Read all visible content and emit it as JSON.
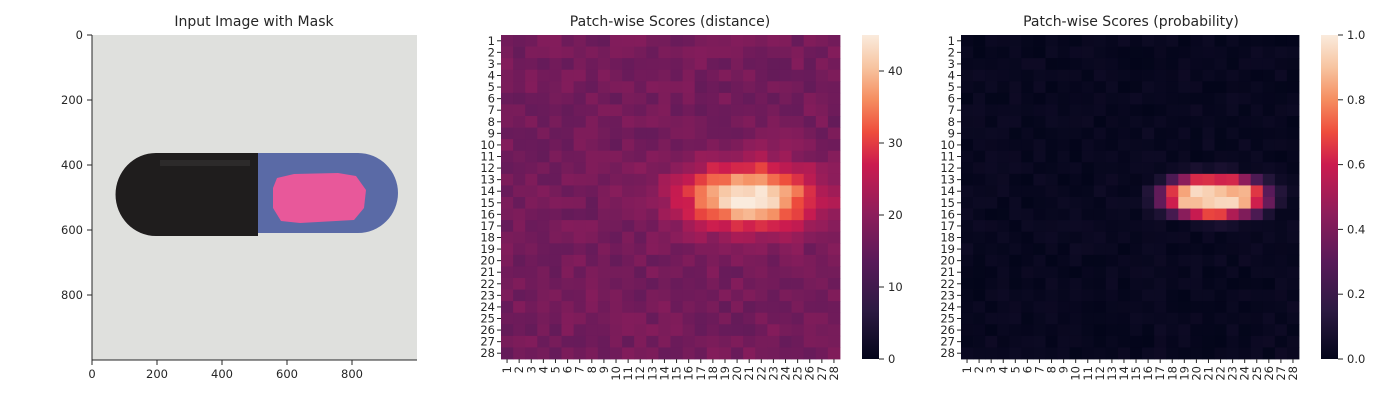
{
  "chart_data": [
    {
      "type": "image",
      "title": "Input Image with Mask",
      "xlim": [
        0,
        1000
      ],
      "ylim": [
        1000,
        0
      ],
      "x_ticks": [
        0,
        200,
        400,
        600,
        800
      ],
      "y_ticks": [
        0,
        200,
        400,
        600,
        800
      ],
      "colors": {
        "background": "#dfe0dd",
        "capsule_cap": "#1e1c1c",
        "capsule_body": "#5a6aa6",
        "mask": "#e8589a"
      }
    },
    {
      "type": "heatmap",
      "title": "Patch-wise Scores (distance)",
      "rows": [
        "1",
        "2",
        "3",
        "4",
        "5",
        "6",
        "7",
        "8",
        "9",
        "10",
        "11",
        "12",
        "13",
        "14",
        "15",
        "16",
        "17",
        "18",
        "19",
        "20",
        "21",
        "22",
        "23",
        "24",
        "25",
        "26",
        "27",
        "28"
      ],
      "cols": [
        "1",
        "2",
        "3",
        "4",
        "5",
        "6",
        "7",
        "8",
        "9",
        "10",
        "11",
        "12",
        "13",
        "14",
        "15",
        "16",
        "17",
        "18",
        "19",
        "20",
        "21",
        "22",
        "23",
        "24",
        "25",
        "26",
        "27",
        "28"
      ],
      "colorbar": {
        "min": 0,
        "max": 45,
        "ticks": [
          0,
          10,
          20,
          30,
          40
        ]
      },
      "hot_region": {
        "rows": [
          11,
          18
        ],
        "cols": [
          15,
          27
        ],
        "peak": 45,
        "base": 17
      }
    },
    {
      "type": "heatmap",
      "title": "Patch-wise Scores (probability)",
      "rows": [
        "1",
        "2",
        "3",
        "4",
        "5",
        "6",
        "7",
        "8",
        "9",
        "10",
        "11",
        "12",
        "13",
        "14",
        "15",
        "16",
        "17",
        "18",
        "19",
        "20",
        "21",
        "22",
        "23",
        "24",
        "25",
        "26",
        "27",
        "28"
      ],
      "cols": [
        "1",
        "2",
        "3",
        "4",
        "5",
        "6",
        "7",
        "8",
        "9",
        "10",
        "11",
        "12",
        "13",
        "14",
        "15",
        "16",
        "17",
        "18",
        "19",
        "20",
        "21",
        "22",
        "23",
        "24",
        "25",
        "26",
        "27",
        "28"
      ],
      "colorbar": {
        "min": 0.0,
        "max": 1.0,
        "ticks": [
          "0.0",
          "0.2",
          "0.4",
          "0.6",
          "0.8",
          "1.0"
        ]
      },
      "hot_region": {
        "rows": [
          13,
          16
        ],
        "cols": [
          17,
          26
        ],
        "peak": 1.0,
        "base": 0.0
      }
    }
  ]
}
